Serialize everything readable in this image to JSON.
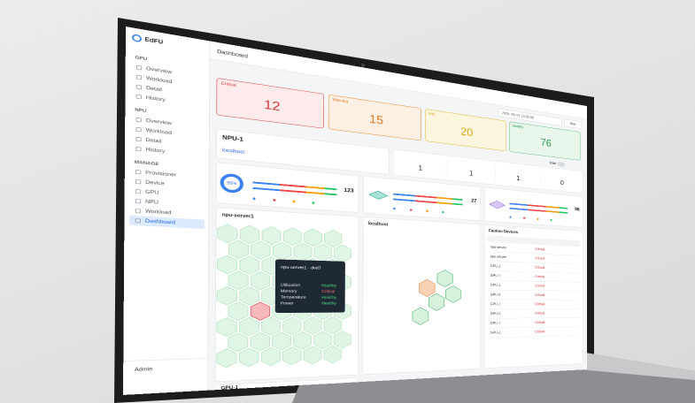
{
  "app": {
    "logo": "EdFU",
    "page_title": "Dashboard",
    "datetime": "2025. 08. 07 14:02:08",
    "button": "Now",
    "toggle_label": "Total"
  },
  "sidebar": {
    "sections": [
      {
        "title": "GPU",
        "items": [
          "Overview",
          "Workload",
          "Detail",
          "History"
        ]
      },
      {
        "title": "NPU",
        "items": [
          "Overview",
          "Workload",
          "Detail",
          "History"
        ]
      },
      {
        "title": "MANAGE",
        "items": [
          "Provisioner",
          "Device",
          "GPU",
          "NPU",
          "Workload",
          "Dashboard"
        ]
      }
    ],
    "user": "Admin"
  },
  "status_cards": [
    {
      "label": "Critical",
      "value": 12
    },
    {
      "label": "Warning",
      "value": 15
    },
    {
      "label": "Info",
      "value": 20
    },
    {
      "label": "Healthy",
      "value": 76
    }
  ],
  "device": {
    "name": "NPU-1",
    "host": "localhost"
  },
  "counts": [
    1,
    1,
    1,
    0
  ],
  "summary": [
    {
      "percent": "95%",
      "value": 123
    },
    {
      "value": 27
    },
    {
      "value": 86
    }
  ],
  "panels": [
    {
      "title": "npu-server1"
    },
    {
      "title": "localhost"
    }
  ],
  "tooltip": {
    "title": "npu-server1 - dvd7",
    "rows": [
      [
        "Utilization",
        "Healthy"
      ],
      [
        "Memory",
        "Critical"
      ],
      [
        "Temperature",
        "Healthy"
      ],
      [
        "Power",
        "Healthy"
      ]
    ]
  },
  "caution": {
    "title": "Caution Devices",
    "rows": [
      [
        "npu-server",
        "Critical"
      ],
      [
        "npu-server",
        "Critical"
      ],
      [
        "GPU-1",
        "Critical"
      ],
      [
        "GPU-1",
        "Critical"
      ],
      [
        "GPU-1",
        "Critical"
      ],
      [
        "GPU-3",
        "Critical"
      ],
      [
        "GPU-1",
        "Critical"
      ],
      [
        "GPU-1",
        "Critical"
      ],
      [
        "GPU-1",
        "Critical"
      ],
      [
        "GPU-1",
        "Critical"
      ]
    ]
  },
  "footer_panel": "GPU-1"
}
